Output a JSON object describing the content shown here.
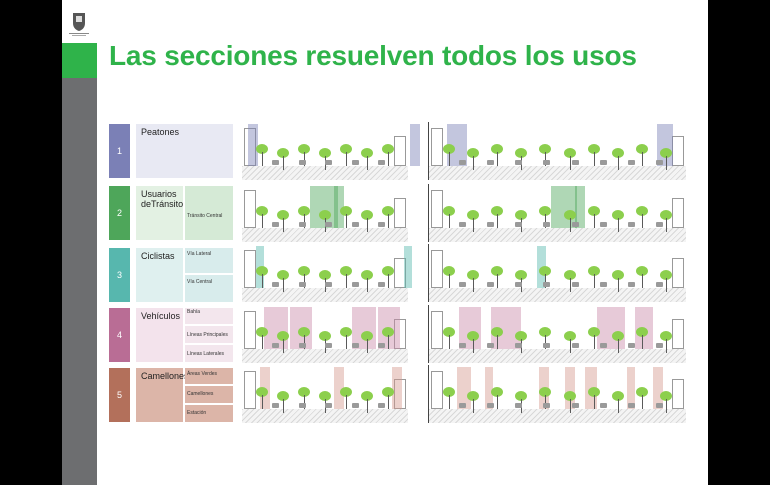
{
  "slide": {
    "title": "Las secciones resuelven todos los usos"
  },
  "colors": {
    "accent": "#2fb34a",
    "sidebar": "#6d6e70",
    "row1": "#7b80b6",
    "row2": "#4ea65a",
    "row3": "#57b7ae",
    "row4": "#b96d95",
    "row5": "#b3705b"
  },
  "rows": [
    {
      "number": "1",
      "label": "Peatones",
      "subs": []
    },
    {
      "number": "2",
      "label": "Usuarios deTránsito",
      "subs": [
        "Tránsito Central"
      ]
    },
    {
      "number": "3",
      "label": "Ciclistas",
      "subs": [
        "Vía Lateral",
        "Vía Central"
      ]
    },
    {
      "number": "4",
      "label": "Vehículos",
      "subs": [
        "Bahía",
        "Líneas Principales",
        "Líneas Laterales"
      ]
    },
    {
      "number": "5",
      "label": "Camellones",
      "subs": [
        "Áreas Verdes",
        "Camellones",
        "Estación"
      ]
    }
  ]
}
